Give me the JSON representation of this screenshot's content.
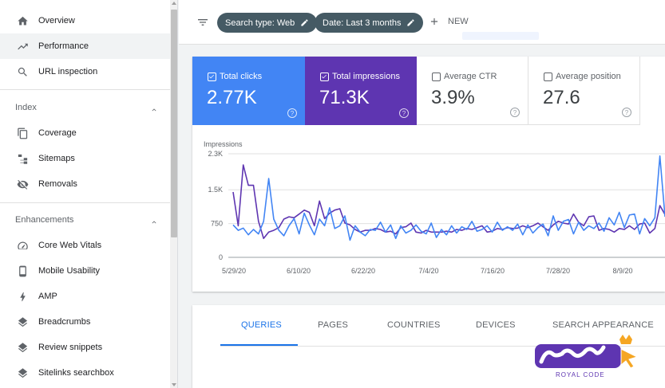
{
  "sidebar": {
    "items_top": [
      {
        "label": "Overview",
        "icon": "home-icon"
      },
      {
        "label": "Performance",
        "icon": "trending-up-icon",
        "active": true
      },
      {
        "label": "URL inspection",
        "icon": "search-icon"
      }
    ],
    "index_section": {
      "title": "Index",
      "items": [
        {
          "label": "Coverage",
          "icon": "copy-icon"
        },
        {
          "label": "Sitemaps",
          "icon": "sitemap-icon"
        },
        {
          "label": "Removals",
          "icon": "eye-off-icon"
        }
      ]
    },
    "enhancements_section": {
      "title": "Enhancements",
      "items": [
        {
          "label": "Core Web Vitals",
          "icon": "speedometer-icon"
        },
        {
          "label": "Mobile Usability",
          "icon": "phone-icon"
        },
        {
          "label": "AMP",
          "icon": "lightning-icon"
        },
        {
          "label": "Breadcrumbs",
          "icon": "layers-icon"
        },
        {
          "label": "Review snippets",
          "icon": "layers-icon"
        },
        {
          "label": "Sitelinks searchbox",
          "icon": "layers-icon"
        }
      ]
    }
  },
  "toolbar": {
    "filters": [
      {
        "label": "Search type: Web"
      },
      {
        "label": "Date: Last 3 months"
      }
    ],
    "new_label": "NEW"
  },
  "metrics": [
    {
      "label": "Total clicks",
      "value": "2.77K",
      "checked": true,
      "color": "#4285f4"
    },
    {
      "label": "Total impressions",
      "value": "71.3K",
      "checked": true,
      "color": "#5e35b1"
    },
    {
      "label": "Average CTR",
      "value": "3.9%",
      "checked": false
    },
    {
      "label": "Average position",
      "value": "27.6",
      "checked": false
    }
  ],
  "tabs": [
    {
      "label": "QUERIES",
      "active": true
    },
    {
      "label": "PAGES"
    },
    {
      "label": "COUNTRIES"
    },
    {
      "label": "DEVICES"
    },
    {
      "label": "SEARCH APPEARANCE"
    }
  ],
  "watermark": {
    "text": "ROYAL CODE"
  },
  "chart_data": {
    "type": "line",
    "ylabel": "Impressions",
    "y_ticks": [
      "0",
      "750",
      "1.5K",
      "2.3K"
    ],
    "ylim": [
      0,
      2300
    ],
    "x_ticks": [
      "5/29/20",
      "6/10/20",
      "6/22/20",
      "7/4/20",
      "7/16/20",
      "7/28/20",
      "8/9/20"
    ],
    "grid": true,
    "series": [
      {
        "color": "#5e35b1",
        "values": [
          1450,
          700,
          2050,
          1600,
          1600,
          800,
          420,
          560,
          600,
          660,
          850,
          900,
          880,
          960,
          1050,
          1000,
          700,
          1250,
          860,
          980,
          1050,
          1080,
          760,
          720,
          620,
          560,
          600,
          600,
          640,
          620,
          560,
          580,
          520,
          660,
          680,
          760,
          560,
          540,
          600,
          560,
          560,
          560,
          580,
          560,
          620,
          600,
          640,
          620,
          660,
          700,
          560,
          580,
          640,
          620,
          660,
          640,
          650,
          700,
          660,
          700,
          760,
          680,
          600,
          720,
          800,
          760,
          740,
          960,
          780,
          700,
          900,
          920,
          600,
          640,
          620,
          560,
          640,
          620,
          700,
          620,
          740,
          760,
          540,
          640,
          1150,
          950
        ]
      },
      {
        "color": "#4285f4",
        "values": [
          720,
          600,
          650,
          500,
          620,
          520,
          800,
          1750,
          850,
          600,
          480,
          700,
          860,
          520,
          980,
          720,
          500,
          850,
          700,
          1100,
          640,
          700,
          920,
          380,
          700,
          560,
          480,
          620,
          600,
          780,
          560,
          720,
          420,
          700,
          540,
          600,
          720,
          580,
          520,
          760,
          440,
          620,
          500,
          700,
          540,
          680,
          620,
          800,
          580,
          620,
          700,
          560,
          780,
          600,
          680,
          600,
          740,
          500,
          720,
          540,
          660,
          740,
          480,
          920,
          600,
          800,
          840,
          520,
          780,
          600,
          700,
          640,
          760,
          580,
          880,
          720,
          1000,
          660,
          940,
          960,
          520,
          860,
          700,
          880,
          2250,
          900
        ]
      }
    ]
  }
}
